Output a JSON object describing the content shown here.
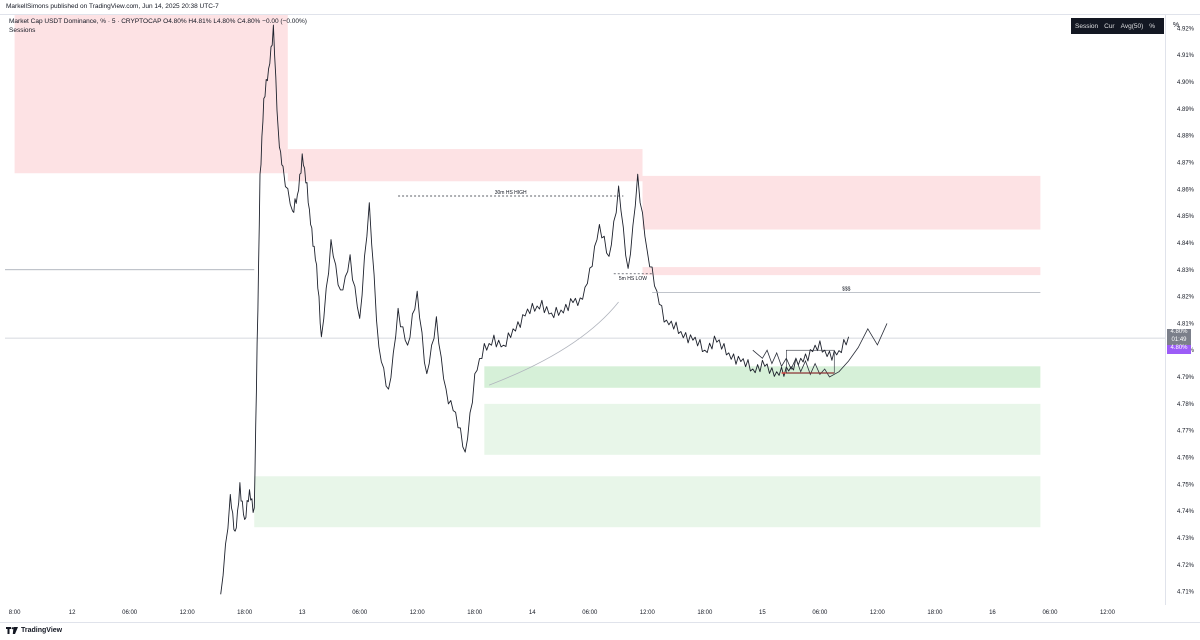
{
  "header": {
    "publisher_text": "MarkellSimons published on TradingView.com, Jun 14, 2025 20:38 UTC-7"
  },
  "symbol": {
    "name": "Market Cap USDT Dominance, % · 5 · CRYPTOCAP",
    "ohlc": "O4.80% H4.81% L4.80% C4.80% −0.00 (−0.00%)",
    "indicator": "Sessions"
  },
  "volume_profile_legend": {
    "items": [
      "Session",
      "Cur",
      "Avg(50)"
    ],
    "percent_toggle": "%"
  },
  "price_tags": {
    "last_price": "4.80%",
    "countdown": "01:49",
    "second_price": "4.80%"
  },
  "footer": {
    "brand": "TradingView"
  },
  "colors": {
    "supply_zone": "#fde2e4",
    "demand_zone": "#e8f6e9",
    "demand_zone_strong": "#d6f0d8",
    "price_tag_gray": "#7b7f8a",
    "price_tag_purple": "#9c5cf7"
  },
  "chart_data": {
    "type": "line",
    "ylim": [
      4.705,
      4.925
    ],
    "y_ticks": [
      "4.92%",
      "4.91%",
      "4.90%",
      "4.89%",
      "4.88%",
      "4.87%",
      "4.86%",
      "4.85%",
      "4.84%",
      "4.83%",
      "4.82%",
      "4.81%",
      "4.80%",
      "4.79%",
      "4.78%",
      "4.77%",
      "4.76%",
      "4.75%",
      "4.74%",
      "4.73%",
      "4.72%",
      "4.71%"
    ],
    "y_tick_values": [
      4.92,
      4.91,
      4.9,
      4.89,
      4.88,
      4.87,
      4.86,
      4.85,
      4.84,
      4.83,
      4.82,
      4.81,
      4.8,
      4.79,
      4.78,
      4.77,
      4.76,
      4.75,
      4.74,
      4.73,
      4.72,
      4.71
    ],
    "x_ticks": [
      "8:00",
      "12",
      "06:00",
      "12:00",
      "18:00",
      "13",
      "06:00",
      "12:00",
      "18:00",
      "14",
      "06:00",
      "12:00",
      "18:00",
      "15",
      "06:00",
      "12:00",
      "18:00",
      "16",
      "06:00",
      "12:00"
    ],
    "x_tick_hours": [
      -12,
      -6,
      0,
      6,
      12,
      18,
      24,
      30,
      36,
      42,
      48,
      54,
      60,
      66,
      72,
      78,
      84,
      90,
      96,
      102
    ],
    "x_hour_range": [
      -13,
      108
    ],
    "price_series_hours": [
      9.5,
      10.5,
      11.0,
      11.5,
      12.0,
      12.5,
      13.0,
      13.3,
      13.6,
      14.0,
      14.5,
      15.0,
      15.5,
      16.0,
      17.0,
      17.5,
      18.0,
      18.5,
      19.0,
      19.5,
      20.0,
      21.0,
      22.0,
      23.0,
      24.0,
      25.0,
      26.0,
      27.0,
      28.0,
      29.0,
      30.0,
      31.0,
      32.0,
      33.0,
      34.0,
      35.0,
      36.0,
      37.0,
      38.0,
      39.0,
      40.0,
      41.0,
      42.0,
      43.0,
      44.0,
      45.0,
      46.0,
      47.0,
      48.0,
      49.0,
      50.0,
      51.0,
      52.0,
      53.0,
      54.0,
      55.0,
      56.0,
      57.0,
      58.0,
      59.0,
      60.0,
      61.0,
      62.0,
      63.0,
      64.0,
      65.0,
      66.0,
      67.0,
      68.0,
      69.0,
      70.0,
      71.0,
      72.0,
      73.0,
      74.0,
      75.0
    ],
    "price_series_values": [
      4.709,
      4.745,
      4.73,
      4.75,
      4.735,
      4.748,
      4.74,
      4.8,
      4.865,
      4.892,
      4.905,
      4.92,
      4.88,
      4.868,
      4.85,
      4.858,
      4.872,
      4.86,
      4.845,
      4.83,
      4.805,
      4.84,
      4.82,
      4.835,
      4.81,
      4.855,
      4.8,
      4.783,
      4.815,
      4.8,
      4.822,
      4.79,
      4.81,
      4.785,
      4.775,
      4.762,
      4.79,
      4.8,
      4.805,
      4.8,
      4.808,
      4.812,
      4.815,
      4.818,
      4.812,
      4.815,
      4.818,
      4.817,
      4.83,
      4.845,
      4.835,
      4.86,
      4.828,
      4.865,
      4.835,
      4.822,
      4.81,
      4.808,
      4.806,
      4.803,
      4.8,
      4.804,
      4.8,
      4.798,
      4.795,
      4.793,
      4.795,
      4.791,
      4.793,
      4.792,
      4.797,
      4.799,
      4.801,
      4.799,
      4.798,
      4.805
    ],
    "zones": [
      {
        "type": "supply",
        "h0": -12,
        "h1": 16.5,
        "y0": 4.866,
        "y1": 4.928
      },
      {
        "type": "supply",
        "h0": 16.5,
        "h1": 53.5,
        "y0": 4.863,
        "y1": 4.875
      },
      {
        "type": "supply",
        "h0": 53.5,
        "h1": 95.0,
        "y0": 4.845,
        "y1": 4.865
      },
      {
        "type": "supply",
        "h0": 53.5,
        "h1": 95.0,
        "y0": 4.828,
        "y1": 4.831
      },
      {
        "type": "demand",
        "h0": 37.0,
        "h1": 95.0,
        "y0": 4.786,
        "y1": 4.794
      },
      {
        "type": "demand",
        "h0": 37.0,
        "h1": 95.0,
        "y0": 4.761,
        "y1": 4.78
      },
      {
        "type": "demand",
        "h0": 13.0,
        "h1": 95.0,
        "y0": 4.734,
        "y1": 4.753
      }
    ],
    "annotations": [
      {
        "text": "30m HS HIGH",
        "h0": 28.0,
        "h1": 51.5,
        "y": 4.8575
      },
      {
        "text": "5m HS LOW",
        "h0": 50.5,
        "h1": 54.5,
        "y": 4.8285
      },
      {
        "text": "$$$",
        "h0": 54.5,
        "h1": 95.0,
        "y": 4.8215
      }
    ],
    "horizontal_lines": [
      {
        "h0": -13,
        "h1": 13.0,
        "y": 4.83
      },
      {
        "h0": -13,
        "h1": 108,
        "y": 4.8045
      }
    ],
    "projection_path_hours": [
      65.0,
      66.0,
      66.5,
      67.0,
      67.5,
      68.0,
      68.5,
      69.0,
      69.5,
      70.0,
      70.5,
      71.0,
      71.5,
      72.0,
      72.5,
      73.0,
      74.0,
      75.0,
      76.0,
      77.0,
      78.0,
      79.0
    ],
    "projection_path_values": [
      4.8,
      4.797,
      4.8,
      4.795,
      4.799,
      4.794,
      4.797,
      4.793,
      4.797,
      4.792,
      4.796,
      4.791,
      4.795,
      4.791,
      4.793,
      4.79,
      4.792,
      4.796,
      4.801,
      4.808,
      4.802,
      4.81
    ]
  }
}
